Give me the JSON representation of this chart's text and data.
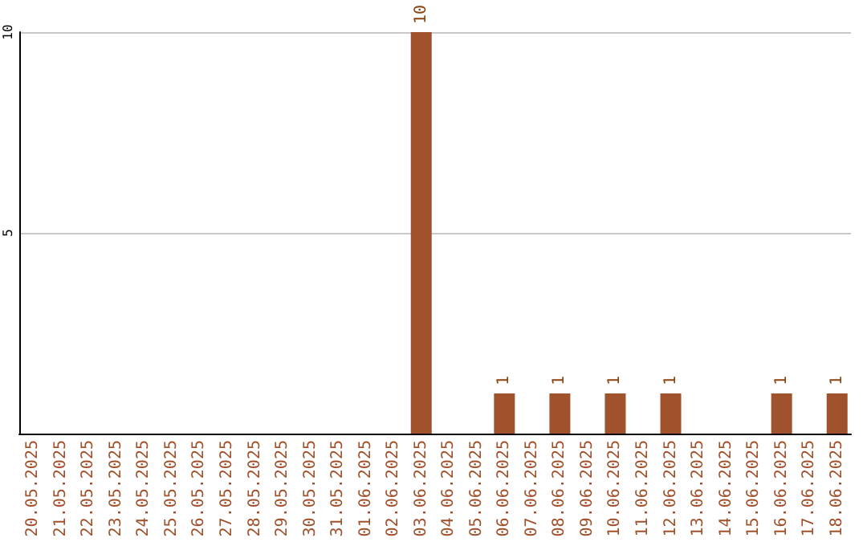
{
  "chart_data": {
    "type": "bar",
    "categories": [
      "20.05.2025",
      "21.05.2025",
      "22.05.2025",
      "23.05.2025",
      "24.05.2025",
      "25.05.2025",
      "26.05.2025",
      "27.05.2025",
      "28.05.2025",
      "29.05.2025",
      "30.05.2025",
      "31.05.2025",
      "01.06.2025",
      "02.06.2025",
      "03.06.2025",
      "04.06.2025",
      "05.06.2025",
      "06.06.2025",
      "07.06.2025",
      "08.06.2025",
      "09.06.2025",
      "10.06.2025",
      "11.06.2025",
      "12.06.2025",
      "13.06.2025",
      "14.06.2025",
      "15.06.2025",
      "16.06.2025",
      "17.06.2025",
      "18.06.2025"
    ],
    "values": [
      0,
      0,
      0,
      0,
      0,
      0,
      0,
      0,
      0,
      0,
      0,
      0,
      0,
      0,
      10,
      0,
      0,
      1,
      0,
      1,
      0,
      1,
      0,
      1,
      0,
      0,
      0,
      1,
      0,
      1
    ],
    "value_labels": [
      null,
      null,
      null,
      null,
      null,
      null,
      null,
      null,
      null,
      null,
      null,
      null,
      null,
      null,
      "10",
      null,
      null,
      "1",
      null,
      "1",
      null,
      "1",
      null,
      "1",
      null,
      null,
      null,
      "1",
      null,
      "1"
    ],
    "color": "#a0522d",
    "ylim": [
      0,
      10
    ],
    "yticks": [
      5,
      10
    ],
    "grid": "y"
  }
}
